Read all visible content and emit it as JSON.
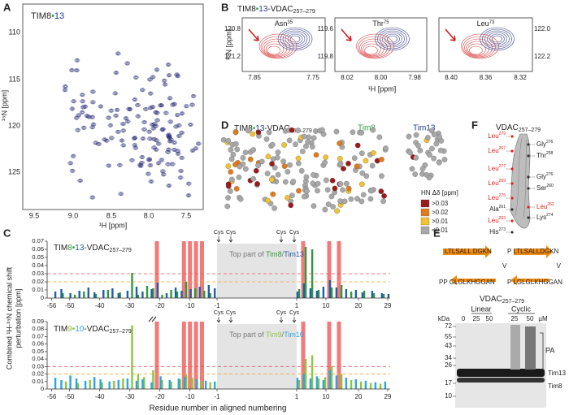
{
  "panel_labels": [
    "A",
    "B",
    "C",
    "D",
    "E",
    "F"
  ],
  "panel_a": {
    "title_parts": [
      "TIM8",
      "•",
      "13"
    ],
    "x_label": "¹H [ppm]",
    "y_label": "¹⁵N [ppm]",
    "x_ticks": [
      "9.5",
      "9.0",
      "8.5",
      "8.0",
      "7.5"
    ],
    "y_ticks": [
      "110",
      "115",
      "120",
      "125"
    ]
  },
  "panel_b": {
    "title_parts": [
      "TIM8",
      "•",
      "13",
      "-VDAC",
      "257–279"
    ],
    "x_label": "¹H [ppm]",
    "y_label": "¹⁵N [ppm]",
    "spectra": [
      {
        "residue": "Asn",
        "number": "35",
        "x_ticks": [
          "7.85",
          "7.75"
        ],
        "y_ticks": [
          "120.8",
          "121.2"
        ]
      },
      {
        "residue": "Thr",
        "number": "75",
        "x_ticks": [
          "8.02",
          "8.00",
          "7.98"
        ],
        "y_ticks": [
          "119.6",
          "119.8"
        ]
      },
      {
        "residue": "Leu",
        "number": "73",
        "x_ticks": [
          "8.40",
          "8.36",
          "8.32"
        ],
        "y_ticks": [
          "122.0",
          "122.2"
        ]
      }
    ]
  },
  "panel_c": {
    "y_label": [
      "Combined ¹H-¹⁵N chemical shift",
      "perturbation [ppm]"
    ],
    "x_label": "Residue number in aligned numbering",
    "cys_label": "Cys",
    "charts": [
      {
        "type": "bar",
        "title_parts": [
          "TIM",
          "8",
          "•",
          "13",
          "-VDAC",
          "257–279"
        ],
        "region_label": [
          "Top part of ",
          "/"
        ],
        "ylim": [
          0,
          0.07
        ],
        "yticks": [
          0,
          0.01,
          0.02,
          0.03,
          0.04,
          0.05,
          0.06,
          0.07
        ],
        "xlim": [
          -56,
          29
        ],
        "xticks": [
          -56,
          -50,
          -40,
          -30,
          -20,
          -10,
          -1,
          1,
          10,
          20,
          29
        ],
        "thresholds": [
          {
            "value": 0.03,
            "color": "#e8585a"
          },
          {
            "value": 0.02,
            "color": "#f2a33a"
          }
        ],
        "highlight_residues": [
          -21,
          -12,
          -10,
          -8,
          -6,
          3,
          11,
          14
        ],
        "series": [
          {
            "name": "Tim8",
            "color": "#2e9b3a",
            "x": [
              -52,
              -48,
              -45,
              -41,
              -37,
              -33,
              -29,
              -27,
              -24,
              -22,
              -19,
              -16,
              -14,
              -11,
              -8,
              -5,
              -3,
              2,
              4,
              6,
              8,
              12,
              15,
              18,
              22,
              25,
              28
            ],
            "values": [
              0.006,
              0.004,
              0.008,
              0.005,
              0.01,
              0.007,
              0.031,
              0.004,
              0.015,
              0.012,
              0.004,
              0.01,
              0.008,
              0.02,
              0.012,
              0.009,
              0.006,
              0.011,
              0.063,
              0.06,
              0.01,
              0.013,
              0.016,
              0.008,
              0.009,
              0.006,
              0.005
            ]
          },
          {
            "name": "Tim13",
            "color": "#1f5fa8",
            "x": [
              -55,
              -53,
              -50,
              -47,
              -44,
              -42,
              -39,
              -36,
              -34,
              -31,
              -28,
              -26,
              -23,
              -21,
              -18,
              -15,
              -13,
              -10,
              -7,
              -4,
              -2,
              1,
              3,
              5,
              7,
              9,
              11,
              13,
              16,
              19,
              21,
              24,
              27,
              29
            ],
            "values": [
              0.008,
              0.011,
              0.006,
              0.009,
              0.013,
              0.007,
              0.01,
              0.012,
              0.006,
              0.009,
              0.014,
              0.008,
              0.011,
              0.019,
              0.006,
              0.013,
              0.009,
              0.011,
              0.014,
              0.016,
              0.012,
              0.008,
              0.018,
              0.012,
              0.009,
              0.014,
              0.022,
              0.013,
              0.011,
              0.01,
              0.007,
              0.009,
              0.006,
              0.005
            ]
          }
        ]
      },
      {
        "type": "bar",
        "title_parts": [
          "TIM",
          "9",
          "•",
          "10",
          "-VDAC",
          "257–279"
        ],
        "region_label": [
          "Top part of ",
          "/"
        ],
        "ylim": [
          0,
          0.09
        ],
        "yticks": [
          0,
          0.01,
          0.02,
          0.03,
          0.04,
          0.05,
          0.06,
          0.07,
          0.08,
          0.09
        ],
        "xlim": [
          -56,
          29
        ],
        "xticks": [
          -56,
          -50,
          -40,
          -30,
          -20,
          -10,
          -1,
          1,
          10,
          20,
          29
        ],
        "thresholds": [
          {
            "value": 0.03,
            "color": "#e8585a"
          },
          {
            "value": 0.02,
            "color": "#f2a33a"
          }
        ],
        "highlight_residues": [
          -21,
          -12,
          -10,
          -8,
          -6,
          3,
          11,
          14
        ],
        "series": [
          {
            "name": "Tim9",
            "color": "#8cc63f",
            "x": [
              -51,
              -47,
              -43,
              -39,
              -35,
              -32,
              -29,
              -27,
              -25,
              -22,
              -19,
              -16,
              -13,
              -11,
              -9,
              -6,
              -3,
              2,
              4,
              6,
              8,
              10,
              12,
              15,
              18,
              21,
              24,
              27
            ],
            "values": [
              0.01,
              0.008,
              0.012,
              0.009,
              0.011,
              0.014,
              0.085,
              0.02,
              0.016,
              0.025,
              0.012,
              0.01,
              0.013,
              0.019,
              0.015,
              0.011,
              0.009,
              0.012,
              0.04,
              0.045,
              0.014,
              0.016,
              0.03,
              0.02,
              0.012,
              0.01,
              0.008,
              0.007
            ]
          },
          {
            "name": "Tim10",
            "color": "#29a6de",
            "x": [
              -55,
              -53,
              -50,
              -48,
              -45,
              -42,
              -40,
              -37,
              -34,
              -31,
              -28,
              -26,
              -23,
              -20,
              -17,
              -14,
              -12,
              -8,
              -5,
              -2,
              1,
              3,
              5,
              7,
              9,
              11,
              13,
              16,
              19,
              22,
              25,
              28
            ],
            "values": [
              0.015,
              0.012,
              0.018,
              0.014,
              0.011,
              0.016,
              0.013,
              0.01,
              0.012,
              0.014,
              0.011,
              0.013,
              0.009,
              0.017,
              0.012,
              0.014,
              0.016,
              0.013,
              0.011,
              0.01,
              0.015,
              0.02,
              0.014,
              0.017,
              0.012,
              0.025,
              0.018,
              0.015,
              0.013,
              0.011,
              0.009,
              0.01
            ]
          }
        ]
      }
    ]
  },
  "panel_d": {
    "title_parts": [
      "TIM8",
      "•",
      "13",
      "-VDAC",
      "257–279"
    ],
    "labels": [
      "Tim8",
      "Tim13"
    ],
    "legend_title": "HN Δδ [ppm]",
    "legend": [
      {
        "label": ">0.03",
        "color": "#9b1b1b"
      },
      {
        "label": ">0.02",
        "color": "#e07b1a"
      },
      {
        "label": ">0.01",
        "color": "#f2c230"
      },
      {
        "label": "<0.01",
        "color": "#a8a8a8"
      }
    ]
  },
  "panel_e": {
    "peptide_linear": [
      "LTLSALL",
      "DGKN",
      "V",
      "PP",
      "GLGLKH",
      "GGAN"
    ],
    "peptide_cyclic": [
      "P",
      "LTLSALL",
      "DGKN",
      "V",
      "LGLGLKH",
      "GGAN",
      "P"
    ],
    "title": [
      "VDAC",
      "257–279"
    ],
    "groups": [
      "Linear",
      "Cyclic"
    ],
    "lanes": [
      "0",
      "25",
      "50",
      "25",
      "50",
      "µM"
    ],
    "unit": "kDa",
    "markers": [
      "72",
      "55",
      "43",
      "34",
      "26",
      "17",
      "10"
    ],
    "bracket_label": "PA",
    "bands": [
      "Tim13",
      "Tim8"
    ]
  },
  "panel_f": {
    "title": [
      "VDAC",
      "257–279"
    ],
    "left": [
      {
        "res": "Leu",
        "num": "279"
      },
      {
        "res": "Leu",
        "num": "267"
      },
      {
        "res": "Leu",
        "num": "277"
      },
      {
        "res": "Leu",
        "num": "269"
      },
      {
        "res": "Leu",
        "num": "275"
      },
      {
        "res": "Ala",
        "num": "261"
      },
      {
        "res": "Leu",
        "num": "263"
      },
      {
        "res": "His",
        "num": "273"
      }
    ],
    "right": [
      {
        "res": "Gly",
        "num": "276"
      },
      {
        "res": "Thr",
        "num": "258"
      },
      {
        "res": "Gly",
        "num": "276"
      },
      {
        "res": "Ser",
        "num": "260"
      },
      {
        "res": "Leu",
        "num": "262"
      },
      {
        "res": "Lys",
        "num": "274"
      }
    ]
  }
}
